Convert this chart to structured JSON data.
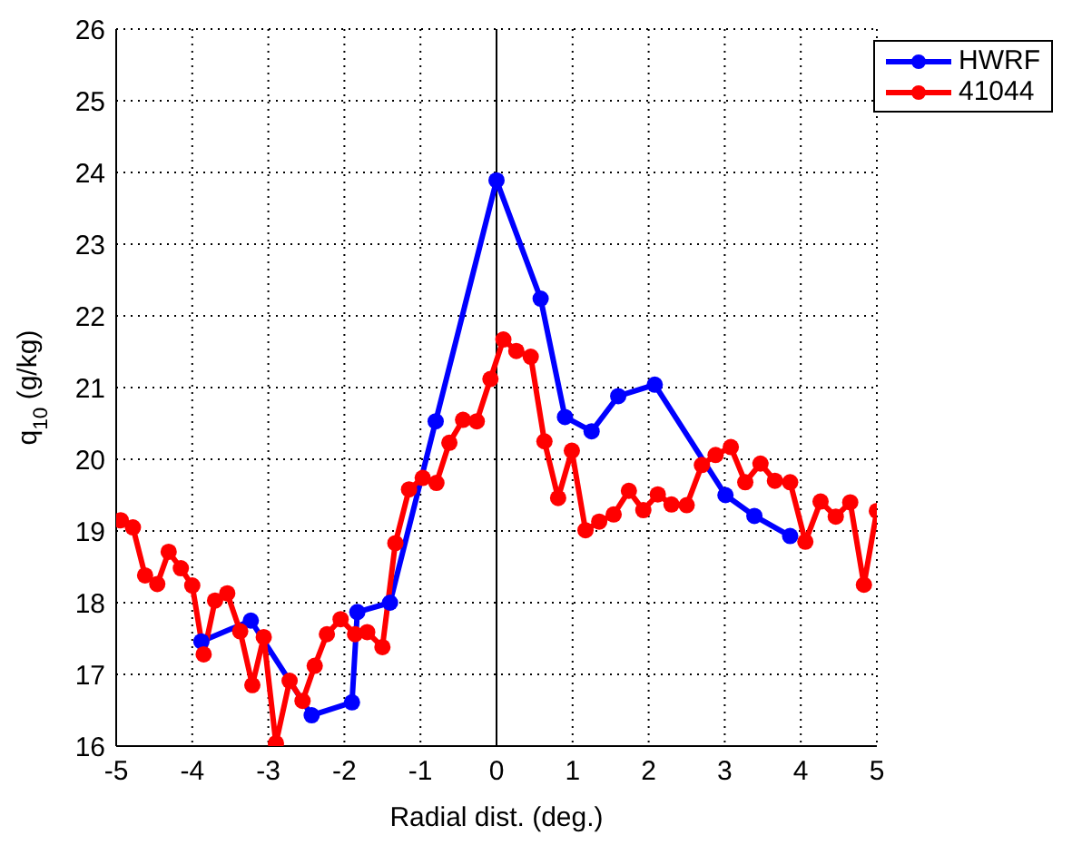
{
  "chart_data": {
    "type": "line",
    "xlabel": "Radial dist. (deg.)",
    "ylabel": "q$_{10}$ (g/kg)",
    "xlim": [
      -5,
      5
    ],
    "xticks": [
      -5,
      -4,
      -3,
      -2,
      -1,
      0,
      1,
      2,
      3,
      4,
      5
    ],
    "ylim": [
      16,
      26
    ],
    "yticks": [
      16,
      17,
      18,
      19,
      20,
      21,
      22,
      23,
      24,
      25,
      26
    ],
    "grid": true,
    "legend": "top right",
    "marker": "circle",
    "line_style": "solid",
    "ref_lines": [
      {
        "axis": "x",
        "value": 0,
        "color": "#000000",
        "line_style": "solid"
      }
    ],
    "series": [
      {
        "name": "HWRF",
        "color": "#0000ff",
        "x": [
          -3.88,
          -3.23,
          -2.43,
          -1.9,
          -1.83,
          -1.4,
          -0.8,
          0,
          0.58,
          0.9,
          1.25,
          1.6,
          2.08,
          3.01,
          3.39,
          3.86
        ],
        "values": [
          17.46,
          17.75,
          16.43,
          16.61,
          17.87,
          18.0,
          20.53,
          23.89,
          22.24,
          20.59,
          20.39,
          20.88,
          21.04,
          19.5,
          19.21,
          18.93
        ]
      },
      {
        "name": "41044",
        "color": "#ff0000",
        "x": [
          -4.94,
          -4.78,
          -4.62,
          -4.46,
          -4.31,
          -4.15,
          -4.0,
          -3.85,
          -3.7,
          -3.54,
          -3.37,
          -3.21,
          -3.06,
          -2.9,
          -2.72,
          -2.55,
          -2.39,
          -2.23,
          -2.05,
          -1.86,
          -1.7,
          -1.5,
          -1.33,
          -1.15,
          -0.97,
          -0.79,
          -0.62,
          -0.44,
          -0.26,
          -0.08,
          0.09,
          0.26,
          0.45,
          0.63,
          0.81,
          0.99,
          1.17,
          1.35,
          1.54,
          1.74,
          1.93,
          2.12,
          2.3,
          2.5,
          2.7,
          2.88,
          3.08,
          3.27,
          3.47,
          3.66,
          3.86,
          4.06,
          4.26,
          4.46,
          4.65,
          4.83,
          5.0
        ],
        "values": [
          19.15,
          19.05,
          18.38,
          18.26,
          18.71,
          18.48,
          18.24,
          17.28,
          18.03,
          18.13,
          17.6,
          16.85,
          17.52,
          16.04,
          16.91,
          16.63,
          17.12,
          17.56,
          17.77,
          17.56,
          17.59,
          17.38,
          18.83,
          19.58,
          19.74,
          19.67,
          20.23,
          20.55,
          20.53,
          21.12,
          21.67,
          21.51,
          21.43,
          20.25,
          19.46,
          20.12,
          19.01,
          19.13,
          19.23,
          19.56,
          19.29,
          19.51,
          19.37,
          19.36,
          19.92,
          20.06,
          20.17,
          19.68,
          19.94,
          19.7,
          19.68,
          18.85,
          19.41,
          19.2,
          19.4,
          18.25,
          19.28
        ]
      }
    ]
  }
}
